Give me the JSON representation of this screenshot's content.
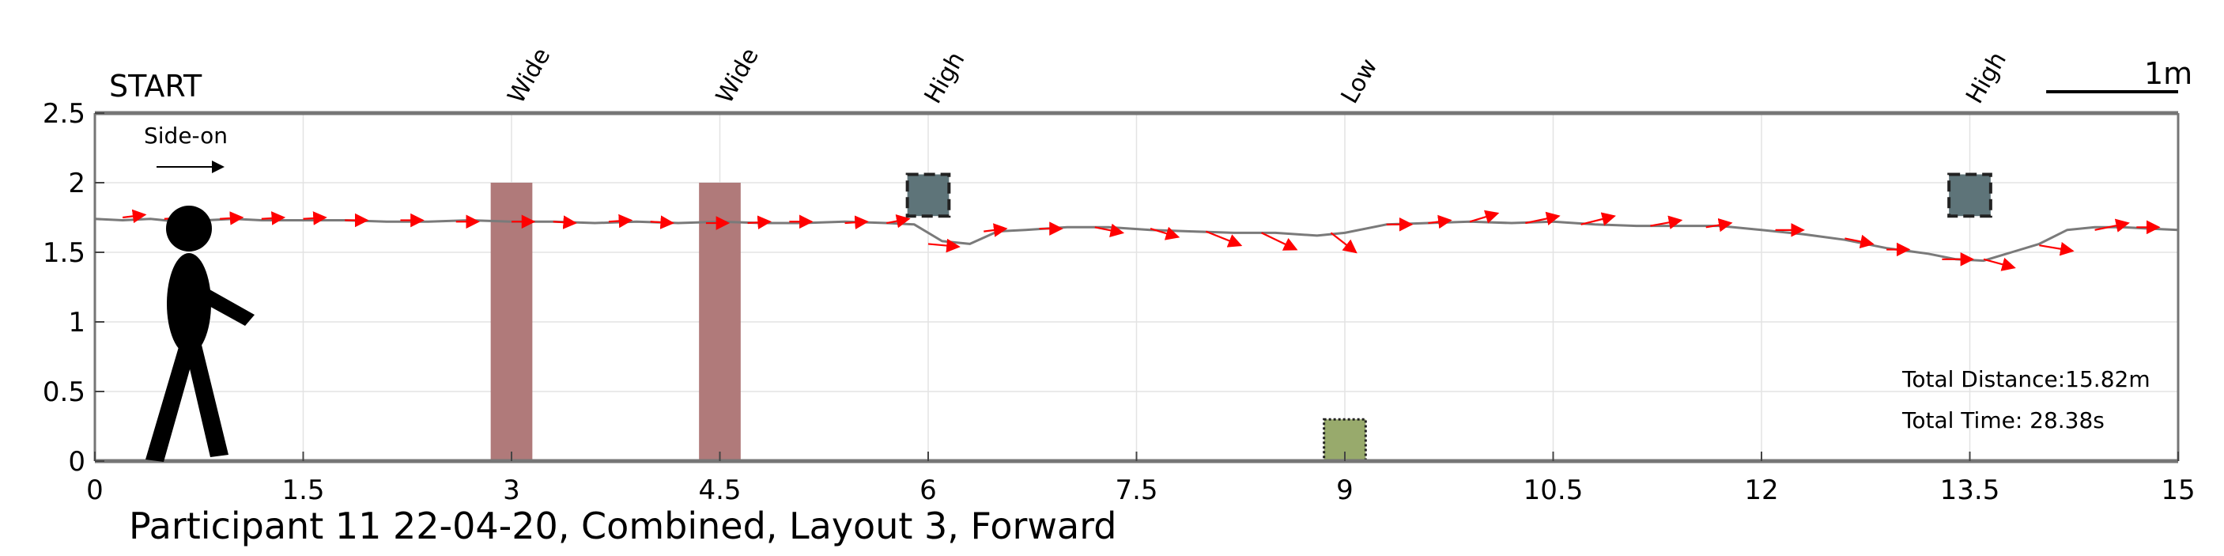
{
  "chart_data": {
    "type": "line",
    "title": "Participant 11 22-04-20, Combined, Layout 3, Forward",
    "xlim": [
      0,
      15
    ],
    "ylim": [
      0,
      2.5
    ],
    "xticks": [
      0,
      1.5,
      3,
      4.5,
      6,
      7.5,
      9,
      10.5,
      12,
      13.5,
      15
    ],
    "xtick_labels": [
      "0",
      "1.5",
      "3",
      "4.5",
      "6",
      "7.5",
      "9",
      "10.5",
      "12",
      "13.5",
      "15"
    ],
    "yticks": [
      0,
      0.5,
      1,
      1.5,
      2,
      2.5
    ],
    "ytick_labels": [
      "0",
      "0.5",
      "1",
      "1.5",
      "2",
      "2.5"
    ],
    "grid": true,
    "start_label": "START",
    "scale_bar_label": "1m",
    "direction_label": "Side-on",
    "total_distance": "Total Distance:15.82m",
    "total_time": "Total Time: 28.38s",
    "obstacles": [
      {
        "label": "Wide",
        "type": "wide",
        "x": 3.0,
        "width": 0.3,
        "y_top": 2.0
      },
      {
        "label": "Wide",
        "type": "wide",
        "x": 4.5,
        "width": 0.3,
        "y_top": 2.0
      },
      {
        "label": "High",
        "type": "high",
        "x": 6.0,
        "width": 0.3,
        "y_center": 1.91
      },
      {
        "label": "Low",
        "type": "low",
        "x": 9.0,
        "width": 0.3,
        "y_top": 0.3
      },
      {
        "label": "High",
        "type": "high",
        "x": 13.5,
        "width": 0.3,
        "y_center": 1.91
      }
    ],
    "series": [
      {
        "values_x": [
          0,
          0.2,
          0.4,
          0.6,
          0.8,
          1.0,
          1.2,
          1.5,
          1.8,
          2.1,
          2.4,
          2.7,
          3.0,
          3.3,
          3.6,
          3.9,
          4.2,
          4.5,
          4.8,
          5.1,
          5.4,
          5.7,
          5.9,
          6.1,
          6.3,
          6.5,
          6.7,
          7.0,
          7.3,
          7.6,
          7.9,
          8.2,
          8.5,
          8.8,
          9.0,
          9.3,
          9.6,
          9.9,
          10.2,
          10.5,
          10.8,
          11.1,
          11.4,
          11.7,
          12.0,
          12.3,
          12.6,
          12.9,
          13.2,
          13.4,
          13.6,
          13.8,
          14.0,
          14.2,
          14.4,
          14.6,
          14.8,
          15.0
        ],
        "values_y": [
          1.74,
          1.73,
          1.74,
          1.72,
          1.73,
          1.74,
          1.73,
          1.73,
          1.73,
          1.72,
          1.72,
          1.73,
          1.72,
          1.72,
          1.71,
          1.72,
          1.71,
          1.72,
          1.71,
          1.71,
          1.72,
          1.71,
          1.7,
          1.58,
          1.56,
          1.65,
          1.66,
          1.68,
          1.68,
          1.66,
          1.65,
          1.64,
          1.64,
          1.62,
          1.64,
          1.7,
          1.71,
          1.72,
          1.71,
          1.72,
          1.7,
          1.69,
          1.69,
          1.69,
          1.66,
          1.63,
          1.59,
          1.53,
          1.49,
          1.45,
          1.44,
          1.5,
          1.56,
          1.66,
          1.68,
          1.68,
          1.67,
          1.66
        ]
      }
    ],
    "orientation_arrows": [
      [
        0.2,
        1.75,
        0.16,
        0.02
      ],
      [
        0.5,
        1.74,
        0.16,
        0.01
      ],
      [
        0.9,
        1.74,
        0.16,
        0.01
      ],
      [
        1.2,
        1.74,
        0.16,
        0.01
      ],
      [
        1.5,
        1.74,
        0.16,
        0.01
      ],
      [
        1.8,
        1.73,
        0.16,
        0.0
      ],
      [
        2.2,
        1.73,
        0.16,
        0.0
      ],
      [
        2.6,
        1.72,
        0.16,
        0.0
      ],
      [
        3.0,
        1.72,
        0.16,
        0.0
      ],
      [
        3.3,
        1.72,
        0.16,
        -0.01
      ],
      [
        3.7,
        1.72,
        0.16,
        0.01
      ],
      [
        4.0,
        1.72,
        0.16,
        -0.01
      ],
      [
        4.4,
        1.71,
        0.16,
        0.0
      ],
      [
        4.7,
        1.71,
        0.16,
        0.01
      ],
      [
        5.0,
        1.72,
        0.16,
        0.0
      ],
      [
        5.4,
        1.71,
        0.16,
        0.01
      ],
      [
        5.7,
        1.71,
        0.16,
        0.03
      ],
      [
        6.0,
        1.56,
        0.22,
        -0.02
      ],
      [
        6.4,
        1.65,
        0.16,
        0.02
      ],
      [
        6.8,
        1.67,
        0.16,
        0.0
      ],
      [
        7.2,
        1.68,
        0.2,
        -0.04
      ],
      [
        7.6,
        1.67,
        0.2,
        -0.06
      ],
      [
        8.0,
        1.65,
        0.25,
        -0.1
      ],
      [
        8.4,
        1.64,
        0.25,
        -0.12
      ],
      [
        8.9,
        1.64,
        0.18,
        -0.14
      ],
      [
        9.3,
        1.7,
        0.18,
        0.0
      ],
      [
        9.6,
        1.71,
        0.16,
        0.02
      ],
      [
        9.9,
        1.72,
        0.2,
        0.06
      ],
      [
        10.3,
        1.71,
        0.24,
        0.05
      ],
      [
        10.7,
        1.7,
        0.24,
        0.06
      ],
      [
        11.2,
        1.69,
        0.22,
        0.04
      ],
      [
        11.6,
        1.68,
        0.18,
        0.03
      ],
      [
        12.1,
        1.66,
        0.2,
        0.0
      ],
      [
        12.6,
        1.6,
        0.2,
        -0.04
      ],
      [
        12.9,
        1.52,
        0.16,
        0.0
      ],
      [
        13.3,
        1.45,
        0.22,
        0.0
      ],
      [
        13.6,
        1.45,
        0.22,
        -0.06
      ],
      [
        14.0,
        1.55,
        0.24,
        -0.04
      ],
      [
        14.4,
        1.66,
        0.24,
        0.05
      ],
      [
        14.7,
        1.68,
        0.16,
        0.0
      ]
    ],
    "colors": {
      "path": "#7a7a7a",
      "arrow": "#ff0000",
      "wide": "#b07a7a",
      "high": "#5e7479",
      "low": "#98aa6c",
      "axis": "#767676",
      "grid": "#e3e3e3"
    }
  }
}
